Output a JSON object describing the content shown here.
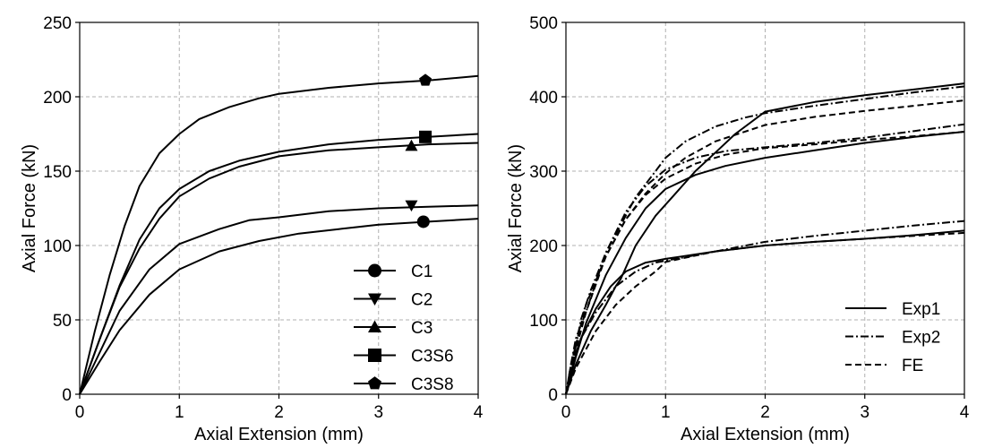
{
  "chart_data": [
    {
      "type": "line",
      "xlabel": "Axial Extension (mm)",
      "ylabel": "Axial Force (kN)",
      "xlim": [
        0,
        4
      ],
      "ylim": [
        0,
        250
      ],
      "xticks": [
        "0",
        "1",
        "2",
        "3",
        "4"
      ],
      "yticks": [
        "0",
        "50",
        "100",
        "150",
        "200",
        "250"
      ],
      "grid": true,
      "legend": "bottom-right",
      "series": [
        {
          "name": "C1",
          "marker": "circle",
          "style": "solid",
          "marker_at": [
            3.45,
            116
          ],
          "x": [
            0,
            0.2,
            0.4,
            0.7,
            1.0,
            1.4,
            1.8,
            2.2,
            2.6,
            3.0,
            3.5,
            4.0
          ],
          "y": [
            0,
            22,
            43,
            67,
            84,
            96,
            103,
            108,
            111,
            114,
            116,
            118
          ]
        },
        {
          "name": "C2",
          "marker": "triangle-down",
          "style": "solid",
          "marker_at": [
            3.33,
            127
          ],
          "x": [
            0,
            0.2,
            0.4,
            0.7,
            1.0,
            1.4,
            1.7,
            2.0,
            2.5,
            3.0,
            3.5,
            4.0
          ],
          "y": [
            0,
            28,
            56,
            84,
            101,
            111,
            117,
            119,
            123,
            125,
            126,
            127
          ]
        },
        {
          "name": "C3",
          "marker": "triangle-up",
          "style": "solid",
          "marker_at": [
            3.33,
            167
          ],
          "x": [
            0,
            0.2,
            0.4,
            0.6,
            0.8,
            1.0,
            1.3,
            1.6,
            2.0,
            2.5,
            3.0,
            3.5,
            4.0
          ],
          "y": [
            0,
            37,
            72,
            98,
            118,
            133,
            145,
            153,
            160,
            164,
            166,
            168,
            169
          ]
        },
        {
          "name": "C3S6",
          "marker": "square",
          "style": "solid",
          "marker_at": [
            3.47,
            173
          ],
          "x": [
            0,
            0.2,
            0.4,
            0.6,
            0.8,
            1.0,
            1.3,
            1.6,
            2.0,
            2.5,
            3.0,
            3.5,
            4.0
          ],
          "y": [
            0,
            37,
            73,
            104,
            125,
            138,
            150,
            157,
            163,
            168,
            171,
            173,
            175
          ]
        },
        {
          "name": "C3S8",
          "marker": "pentagon",
          "style": "solid",
          "marker_at": [
            3.47,
            211
          ],
          "x": [
            0,
            0.15,
            0.3,
            0.45,
            0.6,
            0.8,
            1.0,
            1.2,
            1.5,
            1.8,
            2.0,
            2.5,
            3.0,
            3.5,
            4.0
          ],
          "y": [
            0,
            42,
            80,
            113,
            140,
            162,
            175,
            185,
            193,
            199,
            202,
            206,
            209,
            211,
            214
          ]
        }
      ]
    },
    {
      "type": "line",
      "xlabel": "Axial Extension (mm)",
      "ylabel": "Axial Force (kN)",
      "xlim": [
        0,
        4
      ],
      "ylim": [
        0,
        500
      ],
      "xticks": [
        "0",
        "1",
        "2",
        "3",
        "4"
      ],
      "yticks": [
        "0",
        "100",
        "200",
        "300",
        "400",
        "500"
      ],
      "grid": true,
      "legend": "bottom-right",
      "legend_entries": [
        {
          "name": "Exp1",
          "style": "solid"
        },
        {
          "name": "Exp2",
          "style": "dashdot"
        },
        {
          "name": "FE",
          "style": "dashed"
        }
      ],
      "series": [
        {
          "name": "Exp1",
          "style": "solid",
          "x": [
            0,
            0.05,
            0.15,
            0.3,
            0.45,
            0.6,
            0.8,
            1.0,
            1.2,
            1.5,
            2.0,
            2.5,
            3.0,
            3.5,
            4.0
          ],
          "y": [
            0,
            30,
            75,
            115,
            145,
            165,
            177,
            182,
            186,
            192,
            200,
            205,
            209,
            214,
            220
          ]
        },
        {
          "name": "Exp1",
          "style": "solid",
          "x": [
            0,
            0.1,
            0.2,
            0.4,
            0.6,
            0.8,
            1.0,
            1.3,
            1.6,
            2.0,
            2.5,
            3.0,
            3.5,
            4.0
          ],
          "y": [
            0,
            50,
            95,
            160,
            210,
            250,
            276,
            295,
            307,
            318,
            328,
            338,
            346,
            353
          ]
        },
        {
          "name": "Exp1",
          "style": "solid",
          "x": [
            0,
            0.1,
            0.25,
            0.4,
            0.5,
            0.55,
            0.7,
            0.9,
            1.1,
            1.3,
            1.5,
            1.7,
            2.0,
            2.5,
            3.0,
            3.5,
            4.0
          ],
          "y": [
            0,
            40,
            85,
            120,
            145,
            155,
            200,
            240,
            270,
            300,
            325,
            350,
            380,
            393,
            402,
            410,
            418
          ]
        },
        {
          "name": "Exp2",
          "style": "dashdot",
          "x": [
            0,
            0.05,
            0.15,
            0.3,
            0.5,
            0.7,
            0.9,
            1.1,
            1.5,
            2.0,
            2.5,
            3.0,
            3.5,
            4.0
          ],
          "y": [
            0,
            35,
            75,
            110,
            145,
            165,
            177,
            182,
            192,
            205,
            213,
            220,
            227,
            233
          ]
        },
        {
          "name": "Exp2",
          "style": "dashdot",
          "x": [
            0,
            0.05,
            0.1,
            0.2,
            0.4,
            0.6,
            0.8,
            1.0,
            1.3,
            1.6,
            2.0,
            2.5,
            3.0,
            3.5,
            4.0
          ],
          "y": [
            0,
            40,
            75,
            110,
            190,
            245,
            280,
            302,
            318,
            327,
            332,
            338,
            345,
            354,
            363
          ]
        },
        {
          "name": "Exp2",
          "style": "dashdot",
          "x": [
            0,
            0.05,
            0.15,
            0.25,
            0.4,
            0.5,
            0.7,
            0.9,
            1.0,
            1.2,
            1.5,
            1.8,
            2.0,
            2.5,
            3.0,
            3.5,
            4.0
          ],
          "y": [
            0,
            30,
            100,
            140,
            190,
            215,
            265,
            300,
            318,
            340,
            360,
            372,
            378,
            388,
            397,
            406,
            414
          ]
        },
        {
          "name": "FE",
          "style": "dashed",
          "x": [
            0,
            0.1,
            0.3,
            0.5,
            0.7,
            0.9,
            1.0,
            1.5,
            2.0,
            2.5,
            3.0,
            3.5,
            4.0
          ],
          "y": [
            0,
            35,
            85,
            120,
            145,
            165,
            178,
            192,
            200,
            205,
            209,
            213,
            217
          ]
        },
        {
          "name": "FE",
          "style": "dashed",
          "x": [
            0,
            0.1,
            0.2,
            0.4,
            0.6,
            0.8,
            1.0,
            1.3,
            1.6,
            2.0,
            2.5,
            3.0,
            3.5,
            4.0
          ],
          "y": [
            0,
            60,
            110,
            185,
            235,
            268,
            290,
            310,
            322,
            331,
            336,
            342,
            347,
            353
          ]
        },
        {
          "name": "FE",
          "style": "dashed",
          "x": [
            0,
            0.05,
            0.2,
            0.4,
            0.6,
            0.8,
            1.0,
            1.2,
            1.5,
            2.0,
            2.5,
            3.0,
            3.5,
            4.0
          ],
          "y": [
            0,
            40,
            120,
            185,
            235,
            270,
            297,
            318,
            340,
            362,
            373,
            381,
            388,
            395
          ]
        }
      ]
    }
  ]
}
